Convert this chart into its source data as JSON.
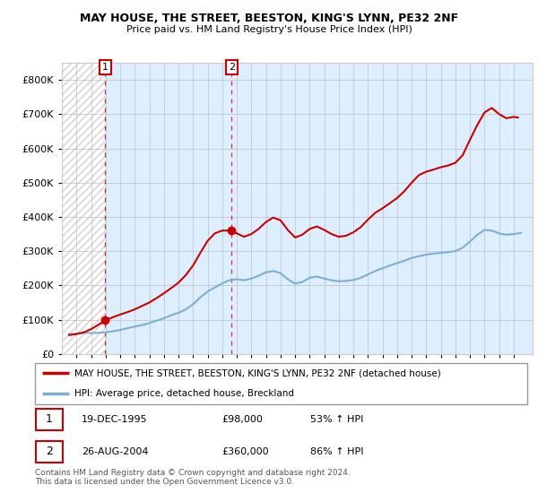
{
  "title": "MAY HOUSE, THE STREET, BEESTON, KING'S LYNN, PE32 2NF",
  "subtitle": "Price paid vs. HM Land Registry's House Price Index (HPI)",
  "legend_line1": "MAY HOUSE, THE STREET, BEESTON, KING'S LYNN, PE32 2NF (detached house)",
  "legend_line2": "HPI: Average price, detached house, Breckland",
  "sale_color": "#cc0000",
  "hpi_color": "#7bafd4",
  "annotation_box_color": "#cc0000",
  "annotation1": {
    "label": "1",
    "date": "19-DEC-1995",
    "price": 98000,
    "pct": "53%",
    "x": 1995.97
  },
  "annotation2": {
    "label": "2",
    "date": "26-AUG-2004",
    "price": 360000,
    "pct": "86%",
    "x": 2004.65
  },
  "footer": "Contains HM Land Registry data © Crown copyright and database right 2024.\nThis data is licensed under the Open Government Licence v3.0.",
  "ylim": [
    0,
    850000
  ],
  "yticks": [
    0,
    100000,
    200000,
    300000,
    400000,
    500000,
    600000,
    700000,
    800000
  ],
  "xlim": [
    1993.0,
    2025.3
  ],
  "xtick_years": [
    1994,
    1995,
    1996,
    1997,
    1998,
    1999,
    2000,
    2001,
    2002,
    2003,
    2004,
    2005,
    2006,
    2007,
    2008,
    2009,
    2010,
    2011,
    2012,
    2013,
    2014,
    2015,
    2016,
    2017,
    2018,
    2019,
    2020,
    2021,
    2022,
    2023,
    2024
  ],
  "hatch_color": "#d0d0d0",
  "bg_right_color": "#ddeeff",
  "hpi_data": [
    [
      1993.5,
      58000
    ],
    [
      1994.0,
      59000
    ],
    [
      1994.5,
      61000
    ],
    [
      1995.0,
      61000
    ],
    [
      1995.5,
      61500
    ],
    [
      1996.0,
      63000
    ],
    [
      1996.5,
      66000
    ],
    [
      1997.0,
      70000
    ],
    [
      1997.5,
      75000
    ],
    [
      1998.0,
      80000
    ],
    [
      1998.5,
      84000
    ],
    [
      1999.0,
      90000
    ],
    [
      1999.5,
      97000
    ],
    [
      2000.0,
      104000
    ],
    [
      2000.5,
      113000
    ],
    [
      2001.0,
      120000
    ],
    [
      2001.5,
      130000
    ],
    [
      2002.0,
      145000
    ],
    [
      2002.5,
      165000
    ],
    [
      2003.0,
      182000
    ],
    [
      2003.5,
      194000
    ],
    [
      2004.0,
      206000
    ],
    [
      2004.5,
      215000
    ],
    [
      2005.0,
      218000
    ],
    [
      2005.5,
      215000
    ],
    [
      2006.0,
      220000
    ],
    [
      2006.5,
      228000
    ],
    [
      2007.0,
      238000
    ],
    [
      2007.5,
      242000
    ],
    [
      2008.0,
      236000
    ],
    [
      2008.5,
      218000
    ],
    [
      2009.0,
      205000
    ],
    [
      2009.5,
      210000
    ],
    [
      2010.0,
      222000
    ],
    [
      2010.5,
      226000
    ],
    [
      2011.0,
      220000
    ],
    [
      2011.5,
      215000
    ],
    [
      2012.0,
      212000
    ],
    [
      2012.5,
      213000
    ],
    [
      2013.0,
      216000
    ],
    [
      2013.5,
      222000
    ],
    [
      2014.0,
      232000
    ],
    [
      2014.5,
      242000
    ],
    [
      2015.0,
      250000
    ],
    [
      2015.5,
      258000
    ],
    [
      2016.0,
      265000
    ],
    [
      2016.5,
      272000
    ],
    [
      2017.0,
      280000
    ],
    [
      2017.5,
      285000
    ],
    [
      2018.0,
      290000
    ],
    [
      2018.5,
      293000
    ],
    [
      2019.0,
      295000
    ],
    [
      2019.5,
      297000
    ],
    [
      2020.0,
      300000
    ],
    [
      2020.5,
      310000
    ],
    [
      2021.0,
      328000
    ],
    [
      2021.5,
      348000
    ],
    [
      2022.0,
      362000
    ],
    [
      2022.5,
      360000
    ],
    [
      2023.0,
      352000
    ],
    [
      2023.5,
      348000
    ],
    [
      2024.0,
      350000
    ],
    [
      2024.5,
      353000
    ]
  ],
  "sale_data": [
    [
      1993.5,
      55000
    ],
    [
      1994.0,
      58000
    ],
    [
      1994.5,
      63000
    ],
    [
      1995.0,
      72000
    ],
    [
      1995.5,
      85000
    ],
    [
      1995.97,
      98000
    ],
    [
      1996.2,
      102000
    ],
    [
      1996.5,
      107000
    ],
    [
      1997.0,
      115000
    ],
    [
      1997.5,
      122000
    ],
    [
      1998.0,
      130000
    ],
    [
      1998.5,
      140000
    ],
    [
      1999.0,
      150000
    ],
    [
      1999.5,
      163000
    ],
    [
      2000.0,
      177000
    ],
    [
      2000.5,
      192000
    ],
    [
      2001.0,
      208000
    ],
    [
      2001.5,
      230000
    ],
    [
      2002.0,
      258000
    ],
    [
      2002.5,
      295000
    ],
    [
      2003.0,
      330000
    ],
    [
      2003.5,
      352000
    ],
    [
      2004.0,
      360000
    ],
    [
      2004.65,
      360000
    ],
    [
      2005.0,
      352000
    ],
    [
      2005.5,
      342000
    ],
    [
      2006.0,
      350000
    ],
    [
      2006.5,
      365000
    ],
    [
      2007.0,
      385000
    ],
    [
      2007.5,
      398000
    ],
    [
      2008.0,
      390000
    ],
    [
      2008.5,
      362000
    ],
    [
      2009.0,
      340000
    ],
    [
      2009.5,
      348000
    ],
    [
      2010.0,
      365000
    ],
    [
      2010.5,
      372000
    ],
    [
      2011.0,
      362000
    ],
    [
      2011.5,
      350000
    ],
    [
      2012.0,
      342000
    ],
    [
      2012.5,
      345000
    ],
    [
      2013.0,
      355000
    ],
    [
      2013.5,
      370000
    ],
    [
      2014.0,
      392000
    ],
    [
      2014.5,
      412000
    ],
    [
      2015.0,
      425000
    ],
    [
      2015.5,
      440000
    ],
    [
      2016.0,
      455000
    ],
    [
      2016.5,
      475000
    ],
    [
      2017.0,
      500000
    ],
    [
      2017.5,
      522000
    ],
    [
      2018.0,
      532000
    ],
    [
      2018.5,
      538000
    ],
    [
      2019.0,
      545000
    ],
    [
      2019.5,
      550000
    ],
    [
      2020.0,
      558000
    ],
    [
      2020.5,
      580000
    ],
    [
      2021.0,
      625000
    ],
    [
      2021.5,
      668000
    ],
    [
      2022.0,
      705000
    ],
    [
      2022.5,
      718000
    ],
    [
      2023.0,
      700000
    ],
    [
      2023.5,
      688000
    ],
    [
      2024.0,
      692000
    ],
    [
      2024.3,
      690000
    ]
  ]
}
